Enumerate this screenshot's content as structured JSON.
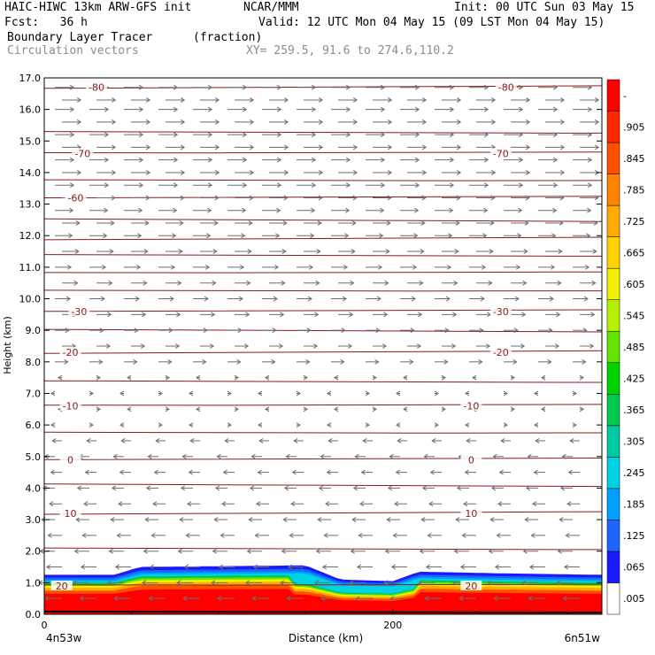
{
  "header": {
    "model": "HAIC-HIWC 13km ARW-GFS init",
    "org": "NCAR/MMM",
    "init": "Init: 00 UTC Sun 03 May 15",
    "fcst": "Fcst:   36 h",
    "valid": "Valid: 12 UTC Mon 04 May 15 (09 LST Mon 04 May 15)",
    "field": "Boundary Layer Tracer",
    "units": "(fraction)",
    "vectors": "Circulation vectors",
    "xy": "XY= 259.5, 91.6 to 274.6,110.2"
  },
  "chart_data": {
    "type": "heatmap",
    "ylabel": "Height (km)",
    "xlabel": "Distance (km)",
    "ylim": [
      0,
      17
    ],
    "yticks": [
      "0.0",
      "1.0",
      "2.0",
      "3.0",
      "4.0",
      "5.0",
      "6.0",
      "7.0",
      "8.0",
      "9.0",
      "10.0",
      "11.0",
      "12.0",
      "13.0",
      "14.0",
      "15.0",
      "16.0",
      "17.0"
    ],
    "xlim": [
      0,
      320
    ],
    "xticks": [
      {
        "value": 0,
        "label": "0"
      },
      {
        "value": 200,
        "label": "200"
      }
    ],
    "x_end_labels": {
      "left": "4n53w",
      "right": "6n51w"
    },
    "colorbar": {
      "labels": [
        ".005",
        ".065",
        ".125",
        ".185",
        ".245",
        ".305",
        ".365",
        ".425",
        ".485",
        ".545",
        ".605",
        ".665",
        ".725",
        ".785",
        ".845",
        ".905",
        "-"
      ],
      "colors": [
        "#ffffff",
        "#1a1aff",
        "#1e64ff",
        "#00a0ff",
        "#00d2e6",
        "#00c8a0",
        "#00c850",
        "#00d200",
        "#64e600",
        "#b4f000",
        "#f0f000",
        "#ffd200",
        "#ffaa00",
        "#ff8200",
        "#ff5000",
        "#ff2800",
        "#ff0000"
      ]
    },
    "contours": [
      {
        "label": "-80",
        "height": 16.7,
        "positions": [
          30,
          265
        ]
      },
      {
        "label": "-70",
        "height": 14.6,
        "positions": [
          22,
          262
        ]
      },
      {
        "label": "-60",
        "height": 13.2,
        "positions": [
          18
        ]
      },
      {
        "label": "-30",
        "height": 9.6,
        "positions": [
          20,
          262
        ]
      },
      {
        "label": "-20",
        "height": 8.3,
        "positions": [
          15,
          262
        ]
      },
      {
        "label": "-10",
        "height": 6.6,
        "positions": [
          15,
          245
        ]
      },
      {
        "label": "0",
        "height": 4.9,
        "positions": [
          15,
          245
        ]
      },
      {
        "label": "10",
        "height": 3.2,
        "positions": [
          15,
          245
        ]
      },
      {
        "label": "20",
        "height": 0.9,
        "positions": [
          10,
          245
        ]
      }
    ],
    "isotherm_heights": [
      16.7,
      15.3,
      14.6,
      13.8,
      13.2,
      12.5,
      11.9,
      11.4,
      10.8,
      10.3,
      9.6,
      9.0,
      8.3,
      7.4,
      6.6,
      5.8,
      4.9,
      4.1,
      3.2,
      2.1,
      0.9
    ],
    "tracer_top_profile": {
      "x": [
        0,
        40,
        55,
        150,
        170,
        200,
        215,
        260,
        320
      ],
      "height": [
        1.25,
        1.25,
        1.5,
        1.55,
        1.1,
        1.05,
        1.35,
        1.3,
        1.25
      ]
    },
    "wind": {
      "westerly_above_km": 7.5,
      "easterly_below_km": 6.0,
      "rows_km": [
        16.7,
        16.3,
        16.0,
        15.6,
        15.2,
        14.8,
        14.4,
        14.0,
        13.6,
        13.2,
        12.8,
        12.4,
        12.0,
        11.5,
        11.0,
        10.5,
        10.0,
        9.5,
        9.0,
        8.5,
        8.0,
        7.5,
        7.0,
        6.5,
        6.0,
        5.5,
        5.0,
        4.5,
        4.0,
        3.5,
        3.0,
        2.5,
        2.0,
        1.5,
        1.0,
        0.5
      ]
    },
    "grid": false,
    "legend": "right"
  }
}
